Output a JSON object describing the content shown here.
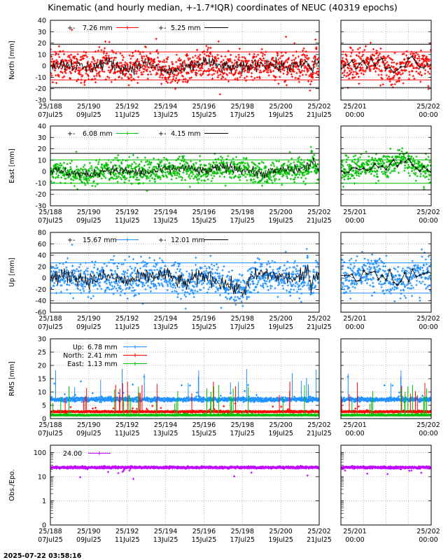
{
  "title": "Kinematic (and hourly median, +-1.7*IQR) coordinates of NEUC (40319 epochs)",
  "timestamp": "2025-07-22 03:58:16",
  "x_day_labels": [
    "25/188",
    "25/190",
    "25/192",
    "25/194",
    "25/196",
    "25/198",
    "25/200",
    "25/202"
  ],
  "x_date_labels": [
    "07Jul25",
    "09Jul25",
    "11Jul25",
    "13Jul25",
    "15Jul25",
    "17Jul25",
    "19Jul25",
    "21Jul25"
  ],
  "zoom_day_labels": [
    "25/201",
    "25/202"
  ],
  "zoom_time_labels": [
    "00:00",
    "00:00"
  ],
  "colors": {
    "north": "#ff0000",
    "east": "#00c000",
    "up": "#1e90ff",
    "obs": "#c000ff",
    "median": "#000000",
    "grid": "#a0a0a0"
  },
  "chart_data": [
    {
      "type": "scatter",
      "id": "north",
      "ylabel": "North [mm]",
      "ylim": [
        -30,
        40
      ],
      "yticks": [
        -30,
        -20,
        -10,
        0,
        10,
        20,
        30,
        40
      ],
      "xlim": [
        188,
        202
      ],
      "zoom_xlim": [
        201,
        202
      ],
      "grid": true,
      "legend": [
        {
          "prefix": "+-",
          "text": "7.26 mm",
          "color": "#ff0000"
        },
        {
          "prefix": "+-",
          "text": "5.25 mm",
          "color": "#000000"
        }
      ],
      "series": [
        {
          "kind": "kinematic",
          "color": "#ff0000",
          "center": 0,
          "spread": 9,
          "hlines": [
            12.3,
            -12.3
          ],
          "anchors": [
            [
              188,
              2
            ],
            [
              189,
              1
            ],
            [
              190,
              -2
            ],
            [
              191,
              3
            ],
            [
              192,
              -3
            ],
            [
              193,
              2
            ],
            [
              194,
              -5
            ],
            [
              195,
              -3
            ],
            [
              196,
              4
            ],
            [
              197,
              -1
            ],
            [
              198,
              -2
            ],
            [
              199,
              3
            ],
            [
              200,
              -1
            ],
            [
              201,
              0
            ],
            [
              201.4,
              3
            ],
            [
              201.6,
              -6
            ],
            [
              201.8,
              5
            ],
            [
              202,
              1
            ]
          ]
        },
        {
          "kind": "median",
          "color": "#000000",
          "spread": 4,
          "hlines": [
            19,
            -19
          ]
        }
      ]
    },
    {
      "type": "scatter",
      "id": "east",
      "ylabel": "East [mm]",
      "ylim": [
        -30,
        40
      ],
      "yticks": [
        -30,
        -20,
        -10,
        0,
        10,
        20,
        30,
        40
      ],
      "xlim": [
        188,
        202
      ],
      "zoom_xlim": [
        201,
        202
      ],
      "grid": true,
      "legend": [
        {
          "prefix": "+-",
          "text": "6.08 mm",
          "color": "#00c000"
        },
        {
          "prefix": "+-",
          "text": "4.15 mm",
          "color": "#000000"
        }
      ],
      "series": [
        {
          "kind": "kinematic",
          "color": "#00c000",
          "center": 0,
          "spread": 7,
          "hlines": [
            10.3,
            -10.3
          ],
          "anchors": [
            [
              188,
              1
            ],
            [
              189,
              -1
            ],
            [
              190,
              -3
            ],
            [
              191,
              2
            ],
            [
              192,
              0
            ],
            [
              193,
              -1
            ],
            [
              194,
              2
            ],
            [
              195,
              3
            ],
            [
              196,
              0
            ],
            [
              197,
              4
            ],
            [
              198,
              2
            ],
            [
              199,
              -2
            ],
            [
              200,
              1
            ],
            [
              201,
              2
            ],
            [
              201.5,
              5
            ],
            [
              201.7,
              12
            ],
            [
              201.9,
              2
            ],
            [
              202,
              0
            ]
          ]
        },
        {
          "kind": "median",
          "color": "#000000",
          "spread": 3,
          "hlines": [
            16,
            -16
          ]
        }
      ]
    },
    {
      "type": "scatter",
      "id": "up",
      "ylabel": "Up [mm]",
      "ylim": [
        -60,
        80
      ],
      "yticks": [
        -60,
        -40,
        -20,
        0,
        20,
        40,
        60,
        80
      ],
      "xlim": [
        188,
        202
      ],
      "zoom_xlim": [
        201,
        202
      ],
      "grid": true,
      "legend": [
        {
          "prefix": "+-",
          "text": "15.67 mm",
          "color": "#1e90ff"
        },
        {
          "prefix": "+-",
          "text": "12.01 mm",
          "color": "#000000"
        }
      ],
      "series": [
        {
          "kind": "kinematic",
          "color": "#1e90ff",
          "center": 0,
          "spread": 20,
          "hlines": [
            26.6,
            -26.6
          ],
          "anchors": [
            [
              188,
              0
            ],
            [
              189,
              5
            ],
            [
              190,
              -4
            ],
            [
              191,
              3
            ],
            [
              192,
              -6
            ],
            [
              193,
              2
            ],
            [
              194,
              6
            ],
            [
              195,
              -10
            ],
            [
              196,
              5
            ],
            [
              197,
              -8
            ],
            [
              198,
              -25
            ],
            [
              198.5,
              0
            ],
            [
              199,
              8
            ],
            [
              200,
              2
            ],
            [
              201,
              -2
            ],
            [
              201.4,
              12
            ],
            [
              201.6,
              -10
            ],
            [
              201.8,
              8
            ],
            [
              202,
              10
            ]
          ]
        },
        {
          "kind": "median",
          "color": "#000000",
          "spread": 10,
          "hlines": [
            44,
            -44
          ]
        }
      ]
    },
    {
      "type": "scatter",
      "id": "rms",
      "ylabel": "RMS [mm]",
      "ylim": [
        0,
        30
      ],
      "yticks": [
        0,
        5,
        10,
        15,
        20,
        25,
        30
      ],
      "xlim": [
        188,
        202
      ],
      "zoom_xlim": [
        201,
        202
      ],
      "grid": true,
      "legend": [
        {
          "name": "Up:",
          "text": "6.78 mm",
          "color": "#1e90ff"
        },
        {
          "name": "North:",
          "text": "2.41 mm",
          "color": "#ff0000"
        },
        {
          "name": "East:",
          "text": "1.13 mm",
          "color": "#00c000"
        }
      ],
      "series": [
        {
          "kind": "rms",
          "color": "#1e90ff",
          "value": 7.2
        },
        {
          "kind": "rms",
          "color": "#ff0000",
          "value": 2.6
        },
        {
          "kind": "rms",
          "color": "#00c000",
          "value": 1.3
        }
      ]
    },
    {
      "type": "scatter",
      "id": "obs",
      "ylabel": "Obs./Epo.",
      "yscale": "log",
      "ylim": [
        0.1,
        200
      ],
      "yticks": [
        0.1,
        1,
        10,
        100
      ],
      "ytick_labels": [
        "0",
        "1",
        "10",
        "100"
      ],
      "xlim": [
        188,
        202
      ],
      "zoom_xlim": [
        201,
        202
      ],
      "grid": true,
      "legend": [
        {
          "text": "24.00",
          "color": "#c000ff"
        }
      ],
      "series": [
        {
          "kind": "obs",
          "color": "#c000ff",
          "value": 24
        }
      ]
    }
  ]
}
